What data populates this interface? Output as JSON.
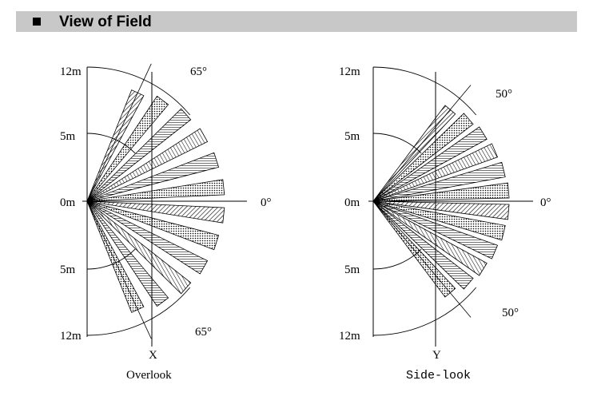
{
  "header": {
    "title": "View of Field"
  },
  "diagrams": [
    {
      "id": "overlook",
      "range_labels": [
        "12m",
        "5m",
        "0m",
        "5m",
        "12m"
      ],
      "angle_top": "65°",
      "angle_bottom": "65°",
      "angle_zero": "0°",
      "axis_letter": "X",
      "caption": "Overlook",
      "half_angle_deg": 65
    },
    {
      "id": "sidelook",
      "range_labels": [
        "12m",
        "5m",
        "0m",
        "5m",
        "12m"
      ],
      "angle_top": "50°",
      "angle_bottom": "50°",
      "angle_zero": "0°",
      "axis_letter": "Y",
      "caption": "Side-look",
      "half_angle_deg": 50
    }
  ]
}
